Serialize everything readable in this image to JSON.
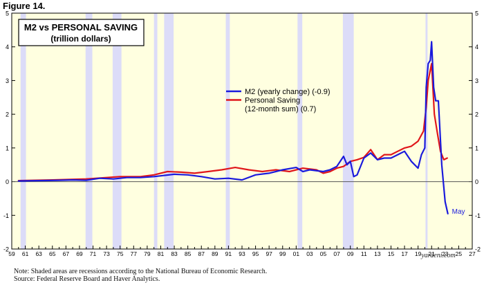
{
  "figure_label": "Figure 14.",
  "chart_data": {
    "type": "line",
    "title": "M2 vs PERSONAL SAVING",
    "subtitle": "(trillion dollars)",
    "xlabel": "",
    "ylabel": "",
    "xlim": [
      1959,
      2027
    ],
    "ylim": [
      -2,
      5
    ],
    "x_tick_labels": [
      "59",
      "61",
      "63",
      "65",
      "67",
      "69",
      "71",
      "73",
      "75",
      "77",
      "79",
      "81",
      "83",
      "85",
      "87",
      "89",
      "91",
      "93",
      "95",
      "97",
      "99",
      "01",
      "03",
      "05",
      "07",
      "09",
      "11",
      "13",
      "15",
      "17",
      "19",
      "21",
      "23",
      "25",
      "27"
    ],
    "y_tick_labels": [
      "-2",
      "-1",
      "0",
      "1",
      "2",
      "3",
      "4",
      "5"
    ],
    "y_tick_values": [
      -2,
      -1,
      0,
      1,
      2,
      3,
      4,
      5
    ],
    "recessions": [
      [
        1960.3,
        1961.1
      ],
      [
        1969.9,
        1970.9
      ],
      [
        1973.9,
        1975.2
      ],
      [
        1980.0,
        1980.5
      ],
      [
        1981.5,
        1982.9
      ],
      [
        1990.6,
        1991.2
      ],
      [
        2001.2,
        2001.9
      ],
      [
        2007.9,
        2009.5
      ],
      [
        2020.1,
        2020.4
      ]
    ],
    "series": [
      {
        "name": "M2",
        "color": "#1a1adc",
        "x": [
          1960,
          1963,
          1966,
          1968,
          1970,
          1972,
          1974,
          1976,
          1978,
          1980,
          1983,
          1985,
          1987,
          1989,
          1991,
          1993,
          1995,
          1997,
          1999,
          2001,
          2002,
          2003,
          2005,
          2006,
          2007,
          2008,
          2008.5,
          2009,
          2009.5,
          2010,
          2011,
          2012,
          2013,
          2014,
          2015,
          2016,
          2017,
          2018,
          2019,
          2019.5,
          2020,
          2020.2,
          2020.5,
          2020.8,
          2021,
          2021.3,
          2021.6,
          2022,
          2022.5,
          2023,
          2023.4
        ],
        "values": [
          0.02,
          0.03,
          0.04,
          0.05,
          0.04,
          0.1,
          0.08,
          0.12,
          0.12,
          0.15,
          0.22,
          0.2,
          0.15,
          0.08,
          0.1,
          0.05,
          0.2,
          0.25,
          0.35,
          0.42,
          0.3,
          0.35,
          0.3,
          0.35,
          0.45,
          0.75,
          0.5,
          0.6,
          0.15,
          0.2,
          0.7,
          0.85,
          0.65,
          0.7,
          0.7,
          0.8,
          0.9,
          0.6,
          0.4,
          0.8,
          1.0,
          2.8,
          3.5,
          3.6,
          4.15,
          2.8,
          2.4,
          2.4,
          0.5,
          -0.6,
          -0.95
        ]
      },
      {
        "name": "Personal Saving",
        "color": "#e0161a",
        "x": [
          1960,
          1965,
          1970,
          1975,
          1978,
          1980,
          1982,
          1984,
          1986,
          1988,
          1990,
          1992,
          1994,
          1996,
          1998,
          2000,
          2002,
          2004,
          2005,
          2006,
          2007,
          2008,
          2009,
          2010,
          2011,
          2012,
          2013,
          2014,
          2015,
          2016,
          2017,
          2018,
          2019,
          2019.8,
          2020.2,
          2020.5,
          2021,
          2021.4,
          2021.8,
          2022.3,
          2022.8,
          2023.3
        ],
        "values": [
          0.03,
          0.05,
          0.08,
          0.15,
          0.15,
          0.2,
          0.3,
          0.28,
          0.25,
          0.3,
          0.35,
          0.42,
          0.35,
          0.3,
          0.35,
          0.3,
          0.4,
          0.35,
          0.25,
          0.3,
          0.4,
          0.45,
          0.6,
          0.65,
          0.72,
          0.95,
          0.65,
          0.8,
          0.8,
          0.9,
          1.0,
          1.05,
          1.2,
          1.5,
          2.2,
          3.0,
          3.5,
          2.0,
          1.5,
          0.9,
          0.65,
          0.7
        ]
      }
    ],
    "legend": {
      "position": "center",
      "entries": [
        {
          "label_lines": [
            "M2 (yearly change) (-0.9)"
          ],
          "color": "#1a1adc"
        },
        {
          "label_lines": [
            "Personal Saving",
            "(12-month sum) (0.7)"
          ],
          "color": "#e0161a"
        }
      ]
    },
    "annotations": [
      {
        "text": "May",
        "x": 2024.0,
        "y": -0.87,
        "color": "#1a1adc"
      }
    ],
    "watermark": "yardeni.com",
    "colors": {
      "plot_bg": "#ffffe0",
      "recession": "#dcdcf8",
      "zero_line": "#555555"
    }
  },
  "note_lines": [
    "Note: Shaded areas are recessions according to the National Bureau of Economic Research.",
    "Source: Federal Reserve Board and Haver Analytics."
  ]
}
